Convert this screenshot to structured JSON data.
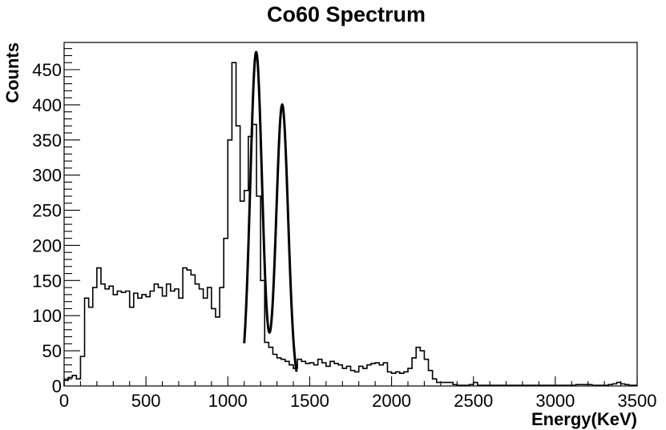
{
  "chart_data": {
    "type": "histogram",
    "title": "Co60 Spectrum",
    "xlabel": "Energy(KeV)",
    "ylabel": "Counts",
    "xlim": [
      0,
      3500
    ],
    "ylim": [
      0,
      480
    ],
    "grid": false,
    "legend": "none",
    "x_ticks": [
      0,
      500,
      1000,
      1500,
      2000,
      2500,
      3000,
      3500
    ],
    "y_ticks": [
      0,
      50,
      100,
      150,
      200,
      250,
      300,
      350,
      400,
      450
    ],
    "bin_width": 25,
    "series": [
      {
        "values": [
          8,
          12,
          15,
          10,
          42,
          125,
          112,
          140,
          168,
          145,
          138,
          142,
          130,
          135,
          133,
          135,
          112,
          132,
          125,
          130,
          127,
          135,
          145,
          140,
          128,
          145,
          135,
          138,
          125,
          168,
          165,
          158,
          145,
          138,
          125,
          140,
          110,
          98,
          140,
          210,
          350,
          460,
          370,
          263,
          278,
          355,
          372,
          270,
          150,
          62,
          55,
          45,
          40,
          38,
          35,
          30,
          25,
          38,
          35,
          32,
          33,
          30,
          38,
          33,
          28,
          35,
          32,
          30,
          25,
          28,
          22,
          20,
          28,
          25,
          30,
          32,
          33,
          30,
          33,
          20,
          18,
          20,
          18,
          20,
          25,
          40,
          55,
          50,
          38,
          22,
          10,
          5,
          5,
          5,
          5,
          2,
          1,
          1,
          1,
          2,
          5,
          1,
          1,
          1,
          1,
          1,
          1,
          1,
          1,
          1,
          1,
          1,
          1,
          1,
          1,
          1,
          1,
          1,
          1,
          1,
          1,
          1,
          1,
          1,
          1,
          2,
          2,
          2,
          2,
          1,
          1,
          1,
          1,
          2,
          3,
          5,
          3,
          2,
          1,
          1
        ]
      }
    ],
    "fit": {
      "peaks": [
        {
          "mean": 1173,
          "height": 475
        },
        {
          "mean": 1332,
          "height": 400
        }
      ],
      "x_range": [
        1100,
        1420
      ]
    }
  }
}
